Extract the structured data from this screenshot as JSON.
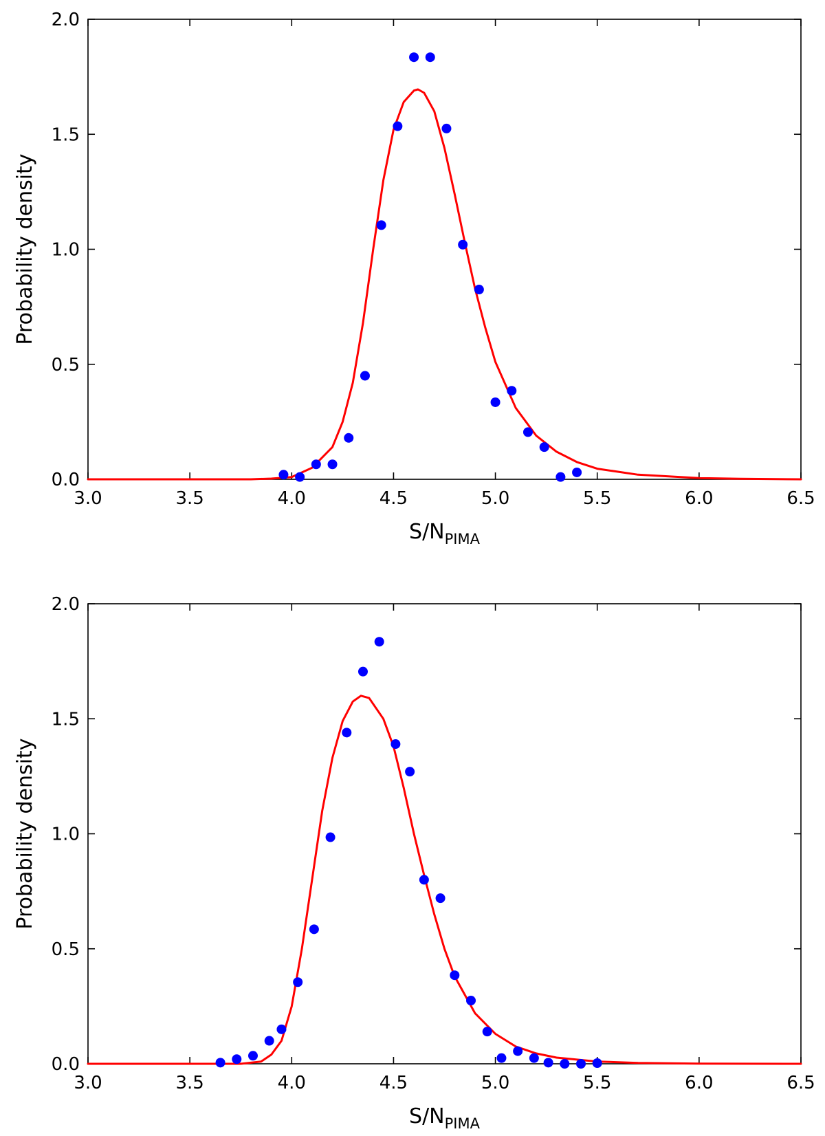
{
  "chart_data": [
    {
      "type": "scatter",
      "xlabel": "S/N",
      "xlabel_sub": "PIMA",
      "ylabel": "Probability density",
      "xlim": [
        3.0,
        6.5
      ],
      "ylim": [
        0.0,
        2.0
      ],
      "xticks": [
        3.0,
        3.5,
        4.0,
        4.5,
        5.0,
        5.5,
        6.0,
        6.5
      ],
      "xtick_labels": [
        "3.0",
        "3.5",
        "4.0",
        "4.5",
        "5.0",
        "5.5",
        "6.0",
        "6.5"
      ],
      "yticks": [
        0.0,
        0.5,
        1.0,
        1.5,
        2.0
      ],
      "ytick_labels": [
        "0.0",
        "0.5",
        "1.0",
        "1.5",
        "2.0"
      ],
      "grid": false,
      "points_color": "#0000ff",
      "curve_color": "#ff0000",
      "points": [
        [
          3.96,
          0.02
        ],
        [
          4.04,
          0.01
        ],
        [
          4.12,
          0.065
        ],
        [
          4.2,
          0.065
        ],
        [
          4.28,
          0.18
        ],
        [
          4.36,
          0.45
        ],
        [
          4.44,
          1.105
        ],
        [
          4.52,
          1.535
        ],
        [
          4.6,
          1.835
        ],
        [
          4.68,
          1.835
        ],
        [
          4.76,
          1.525
        ],
        [
          4.84,
          1.02
        ],
        [
          4.92,
          0.825
        ],
        [
          5.0,
          0.335
        ],
        [
          5.08,
          0.385
        ],
        [
          5.16,
          0.205
        ],
        [
          5.24,
          0.14
        ],
        [
          5.32,
          0.01
        ],
        [
          5.4,
          0.03
        ]
      ],
      "curve": [
        [
          3.0,
          0.0
        ],
        [
          3.8,
          0.0
        ],
        [
          3.9,
          0.003
        ],
        [
          4.0,
          0.01
        ],
        [
          4.1,
          0.05
        ],
        [
          4.2,
          0.14
        ],
        [
          4.25,
          0.25
        ],
        [
          4.3,
          0.42
        ],
        [
          4.35,
          0.68
        ],
        [
          4.4,
          1.0
        ],
        [
          4.45,
          1.3
        ],
        [
          4.5,
          1.52
        ],
        [
          4.55,
          1.64
        ],
        [
          4.6,
          1.69
        ],
        [
          4.62,
          1.695
        ],
        [
          4.65,
          1.68
        ],
        [
          4.7,
          1.6
        ],
        [
          4.75,
          1.44
        ],
        [
          4.8,
          1.24
        ],
        [
          4.85,
          1.03
        ],
        [
          4.9,
          0.83
        ],
        [
          4.95,
          0.66
        ],
        [
          5.0,
          0.51
        ],
        [
          5.1,
          0.31
        ],
        [
          5.2,
          0.19
        ],
        [
          5.3,
          0.12
        ],
        [
          5.4,
          0.075
        ],
        [
          5.5,
          0.046
        ],
        [
          5.7,
          0.02
        ],
        [
          6.0,
          0.005
        ],
        [
          6.2,
          0.002
        ],
        [
          6.5,
          0.0
        ]
      ]
    },
    {
      "type": "scatter",
      "xlabel": "S/N",
      "xlabel_sub": "PIMA",
      "ylabel": "Probability density",
      "xlim": [
        3.0,
        6.5
      ],
      "ylim": [
        0.0,
        2.0
      ],
      "xticks": [
        3.0,
        3.5,
        4.0,
        4.5,
        5.0,
        5.5,
        6.0,
        6.5
      ],
      "xtick_labels": [
        "3.0",
        "3.5",
        "4.0",
        "4.5",
        "5.0",
        "5.5",
        "6.0",
        "6.5"
      ],
      "yticks": [
        0.0,
        0.5,
        1.0,
        1.5,
        2.0
      ],
      "ytick_labels": [
        "0.0",
        "0.5",
        "1.0",
        "1.5",
        "2.0"
      ],
      "grid": false,
      "points_color": "#0000ff",
      "curve_color": "#ff0000",
      "points": [
        [
          3.65,
          0.005
        ],
        [
          3.73,
          0.02
        ],
        [
          3.81,
          0.035
        ],
        [
          3.89,
          0.1
        ],
        [
          3.95,
          0.15
        ],
        [
          4.03,
          0.355
        ],
        [
          4.11,
          0.585
        ],
        [
          4.19,
          0.985
        ],
        [
          4.27,
          1.44
        ],
        [
          4.35,
          1.705
        ],
        [
          4.43,
          1.835
        ],
        [
          4.51,
          1.39
        ],
        [
          4.58,
          1.27
        ],
        [
          4.65,
          0.8
        ],
        [
          4.73,
          0.72
        ],
        [
          4.8,
          0.385
        ],
        [
          4.88,
          0.275
        ],
        [
          4.96,
          0.14
        ],
        [
          5.03,
          0.025
        ],
        [
          5.11,
          0.055
        ],
        [
          5.19,
          0.025
        ],
        [
          5.26,
          0.005
        ],
        [
          5.34,
          0.0
        ],
        [
          5.42,
          0.0
        ],
        [
          5.5,
          0.003
        ]
      ],
      "curve": [
        [
          3.0,
          0.0
        ],
        [
          3.75,
          0.0
        ],
        [
          3.85,
          0.01
        ],
        [
          3.9,
          0.04
        ],
        [
          3.95,
          0.1
        ],
        [
          4.0,
          0.25
        ],
        [
          4.05,
          0.5
        ],
        [
          4.1,
          0.8
        ],
        [
          4.15,
          1.1
        ],
        [
          4.2,
          1.33
        ],
        [
          4.25,
          1.49
        ],
        [
          4.3,
          1.575
        ],
        [
          4.34,
          1.6
        ],
        [
          4.38,
          1.59
        ],
        [
          4.45,
          1.5
        ],
        [
          4.5,
          1.38
        ],
        [
          4.55,
          1.2
        ],
        [
          4.6,
          1.0
        ],
        [
          4.65,
          0.82
        ],
        [
          4.7,
          0.65
        ],
        [
          4.75,
          0.5
        ],
        [
          4.8,
          0.38
        ],
        [
          4.9,
          0.22
        ],
        [
          5.0,
          0.13
        ],
        [
          5.1,
          0.075
        ],
        [
          5.2,
          0.045
        ],
        [
          5.3,
          0.027
        ],
        [
          5.5,
          0.01
        ],
        [
          5.7,
          0.004
        ],
        [
          6.0,
          0.001
        ],
        [
          6.5,
          0.0
        ]
      ]
    }
  ]
}
